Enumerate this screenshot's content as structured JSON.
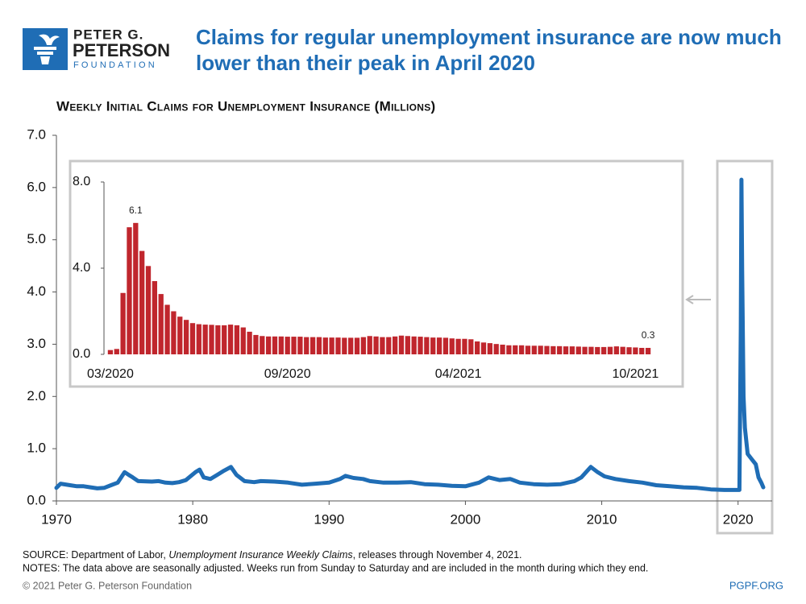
{
  "header": {
    "logo": [
      "PETER G.",
      "PETERSON",
      "FOUNDATION"
    ],
    "title": [
      "Claims for regular unemployment insurance are now much",
      "lower than their peak in April 2020"
    ]
  },
  "chart_data": [
    {
      "type": "line",
      "title": "Weekly Initial Claims for Unemployment Insurance (Millions)",
      "color": "#1f6db5",
      "x": [
        1970,
        1970.3,
        1971,
        1971.5,
        1972,
        1972.5,
        1973,
        1973.5,
        1974,
        1974.5,
        1975,
        1975.3,
        1975.6,
        1976,
        1977,
        1977.5,
        1978,
        1978.5,
        1979,
        1979.5,
        1980.2,
        1980.5,
        1980.8,
        1981.3,
        1981.8,
        1982.3,
        1982.8,
        1983.2,
        1983.8,
        1984.5,
        1985,
        1986,
        1987,
        1988,
        1989,
        1990,
        1990.8,
        1991.2,
        1991.8,
        1992.5,
        1993,
        1994,
        1995,
        1996,
        1997,
        1998,
        1999,
        2000,
        2001,
        2001.7,
        2002.5,
        2003.3,
        2004,
        2005,
        2006,
        2007,
        2008,
        2008.5,
        2009.2,
        2009.7,
        2010.2,
        2011,
        2012,
        2013,
        2014,
        2015,
        2016,
        2017,
        2018,
        2019,
        2020.1,
        2020.2,
        2020.25,
        2020.3,
        2020.4,
        2020.5,
        2020.7,
        2021,
        2021.3,
        2021.5,
        2021.7,
        2021.85
      ],
      "values": [
        0.25,
        0.33,
        0.3,
        0.28,
        0.28,
        0.26,
        0.24,
        0.25,
        0.3,
        0.35,
        0.55,
        0.5,
        0.45,
        0.38,
        0.37,
        0.38,
        0.35,
        0.34,
        0.36,
        0.4,
        0.55,
        0.6,
        0.45,
        0.42,
        0.5,
        0.58,
        0.65,
        0.5,
        0.38,
        0.36,
        0.38,
        0.37,
        0.35,
        0.31,
        0.33,
        0.35,
        0.42,
        0.48,
        0.44,
        0.42,
        0.38,
        0.35,
        0.35,
        0.36,
        0.32,
        0.31,
        0.29,
        0.28,
        0.35,
        0.45,
        0.4,
        0.42,
        0.35,
        0.32,
        0.31,
        0.32,
        0.38,
        0.45,
        0.65,
        0.55,
        0.47,
        0.42,
        0.38,
        0.35,
        0.3,
        0.28,
        0.26,
        0.25,
        0.22,
        0.21,
        0.21,
        3.3,
        6.15,
        4.4,
        2.0,
        1.4,
        0.9,
        0.8,
        0.7,
        0.45,
        0.35,
        0.26
      ],
      "xlim": [
        1970,
        2022.5
      ],
      "xticks": [
        1970,
        1980,
        1990,
        2000,
        2010,
        2020
      ],
      "ylim": [
        0,
        7
      ],
      "yticks": [
        {
          "value": 0,
          "label": "0.0"
        },
        {
          "value": 1,
          "label": "1.0"
        },
        {
          "value": 2,
          "label": "2.0"
        },
        {
          "value": 3,
          "label": "3.0"
        },
        {
          "value": 4,
          "label": "4.0"
        },
        {
          "value": 5,
          "label": "5.0"
        },
        {
          "value": 6,
          "label": "6.0"
        },
        {
          "value": 7,
          "label": "7.0"
        }
      ]
    },
    {
      "type": "bar",
      "color": "#c0262d",
      "categories": [
        "03/2020",
        null,
        null,
        null,
        null,
        null,
        null,
        null,
        null,
        null,
        null,
        null,
        null,
        null,
        null,
        null,
        null,
        null,
        null,
        null,
        null,
        null,
        null,
        null,
        null,
        null,
        null,
        null,
        "09/2020",
        null,
        null,
        null,
        null,
        null,
        null,
        null,
        null,
        null,
        null,
        null,
        null,
        null,
        null,
        null,
        null,
        null,
        null,
        null,
        null,
        null,
        null,
        null,
        null,
        null,
        null,
        "04/2021",
        null,
        null,
        null,
        null,
        null,
        null,
        null,
        null,
        null,
        null,
        null,
        null,
        null,
        null,
        null,
        null,
        null,
        null,
        null,
        null,
        null,
        null,
        null,
        null,
        null,
        null,
        null,
        "10/2021",
        null,
        null
      ],
      "values": [
        0.2,
        0.25,
        2.85,
        5.9,
        6.1,
        4.8,
        4.1,
        3.4,
        2.8,
        2.3,
        2.0,
        1.75,
        1.6,
        1.45,
        1.4,
        1.38,
        1.37,
        1.35,
        1.35,
        1.38,
        1.35,
        1.25,
        1.05,
        0.9,
        0.85,
        0.83,
        0.83,
        0.83,
        0.82,
        0.82,
        0.82,
        0.8,
        0.8,
        0.8,
        0.78,
        0.78,
        0.78,
        0.77,
        0.77,
        0.77,
        0.8,
        0.85,
        0.83,
        0.8,
        0.8,
        0.83,
        0.87,
        0.85,
        0.83,
        0.82,
        0.8,
        0.78,
        0.78,
        0.77,
        0.74,
        0.72,
        0.72,
        0.7,
        0.6,
        0.55,
        0.52,
        0.48,
        0.45,
        0.42,
        0.42,
        0.42,
        0.4,
        0.4,
        0.4,
        0.39,
        0.38,
        0.38,
        0.37,
        0.37,
        0.36,
        0.35,
        0.35,
        0.34,
        0.34,
        0.35,
        0.37,
        0.35,
        0.33,
        0.32,
        0.3,
        0.3
      ],
      "value_labels": [
        null,
        null,
        null,
        null,
        "6.1",
        null,
        null,
        null,
        null,
        null,
        null,
        null,
        null,
        null,
        null,
        null,
        null,
        null,
        null,
        null,
        null,
        null,
        null,
        null,
        null,
        null,
        null,
        null,
        null,
        null,
        null,
        null,
        null,
        null,
        null,
        null,
        null,
        null,
        null,
        null,
        null,
        null,
        null,
        null,
        null,
        null,
        null,
        null,
        null,
        null,
        null,
        null,
        null,
        null,
        null,
        null,
        null,
        null,
        null,
        null,
        null,
        null,
        null,
        null,
        null,
        null,
        null,
        null,
        null,
        null,
        null,
        null,
        null,
        null,
        null,
        null,
        null,
        null,
        null,
        null,
        null,
        null,
        null,
        null,
        null,
        "0.3"
      ],
      "ylim": [
        0,
        8
      ],
      "yticks": [
        {
          "value": 0,
          "label": "0.0"
        },
        {
          "value": 4,
          "label": "4.0"
        },
        {
          "value": 8,
          "label": "8.0"
        }
      ]
    }
  ],
  "source": [
    "SOURCE: Department of Labor, ",
    "Unemployment Insurance Weekly Claims",
    ", releases through November 4, 2021."
  ],
  "notes": "NOTES: The data above are seasonally adjusted. Weeks run from Sunday to Saturday and are included in the month during which they end.",
  "footer": {
    "copyright": "© 2021 Peter G. Peterson Foundation",
    "site": "PGPF.ORG"
  }
}
